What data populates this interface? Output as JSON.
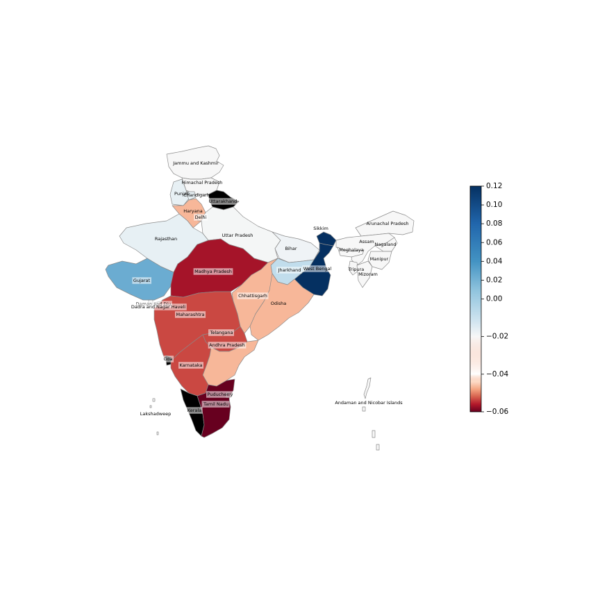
{
  "colors": {
    "ramp": [
      "#67001f",
      "#b2182b",
      "#d6604d",
      "#f4a582",
      "#fddbc7",
      "#f7f7f7",
      "#d1e5f0",
      "#92c5de",
      "#4393c3",
      "#2166ac",
      "#053061"
    ],
    "missing": "#000000",
    "edge": "#8a8a8a"
  },
  "colorbar": {
    "min": -0.06,
    "max": 0.12,
    "center": 0.0,
    "scale": "two-slope diverging",
    "ticks": [
      "0.12",
      "0.10",
      "0.08",
      "0.06",
      "0.04",
      "0.02",
      "0.00",
      "−0.02",
      "−0.04",
      "−0.06"
    ],
    "tick_values": [
      0.12,
      0.1,
      0.08,
      0.06,
      0.04,
      0.02,
      0.0,
      -0.02,
      -0.04,
      -0.06
    ]
  },
  "regions": [
    {
      "id": "jk",
      "label": "Jammu and Kashmir",
      "value": 0.0
    },
    {
      "id": "hp",
      "label": "Himachal Pradesh",
      "value": 0.0
    },
    {
      "id": "pb",
      "label": "Punjab",
      "value": 0.01
    },
    {
      "id": "ch",
      "label": "Chandigarh",
      "value": 0.01
    },
    {
      "id": "uk",
      "label": "Uttarakhand",
      "value": null
    },
    {
      "id": "hr",
      "label": "Haryana",
      "value": -0.02
    },
    {
      "id": "dl",
      "label": "Delhi",
      "value": -0.015
    },
    {
      "id": "rj",
      "label": "Rajasthan",
      "value": 0.01
    },
    {
      "id": "up",
      "label": "Uttar Pradesh",
      "value": 0.002
    },
    {
      "id": "br",
      "label": "Bihar",
      "value": 0.005
    },
    {
      "id": "sk",
      "label": "Sikkim",
      "value": 0.12
    },
    {
      "id": "ar",
      "label": "Arunachal Pradesh",
      "value": 0.0
    },
    {
      "id": "as",
      "label": "Assam",
      "value": 0.0
    },
    {
      "id": "ml",
      "label": "Meghalaya",
      "value": 0.0
    },
    {
      "id": "nl",
      "label": "Nagaland",
      "value": 0.0
    },
    {
      "id": "mn",
      "label": "Manipur",
      "value": 0.0
    },
    {
      "id": "tr",
      "label": "Tripura",
      "value": 0.0
    },
    {
      "id": "mz",
      "label": "Mizoram",
      "value": 0.0
    },
    {
      "id": "jh",
      "label": "Jharkhand",
      "value": 0.03
    },
    {
      "id": "wb",
      "label": "West Bengal",
      "value": 0.12
    },
    {
      "id": "gj",
      "label": "Gujarat",
      "value": 0.06
    },
    {
      "id": "mp",
      "label": "Madhya Pradesh",
      "value": -0.05
    },
    {
      "id": "cg",
      "label": "Chhattisgarh",
      "value": -0.02
    },
    {
      "id": "od",
      "label": "Odisha",
      "value": -0.02
    },
    {
      "id": "dd",
      "label": "Daman and Diu",
      "value": 0.0
    },
    {
      "id": "dn",
      "label": "Dadra and Nagar Haveli",
      "value": 0.0
    },
    {
      "id": "mh",
      "label": "Maharashtra",
      "value": -0.04
    },
    {
      "id": "tg",
      "label": "Telangana",
      "value": -0.04
    },
    {
      "id": "ap",
      "label": "Andhra Pradesh",
      "value": -0.02
    },
    {
      "id": "ga",
      "label": "Goa",
      "value": null
    },
    {
      "id": "ka",
      "label": "Karnataka",
      "value": -0.04
    },
    {
      "id": "kl",
      "label": "Kerala",
      "value": null
    },
    {
      "id": "tn",
      "label": "Tamil Nadu",
      "value": -0.06
    },
    {
      "id": "py",
      "label": "Puducherry",
      "value": -0.06
    },
    {
      "id": "ld",
      "label": "Lakshadweep",
      "value": 0.0
    },
    {
      "id": "an",
      "label": "Andaman and Nicobar Islands",
      "value": 0.0
    }
  ]
}
